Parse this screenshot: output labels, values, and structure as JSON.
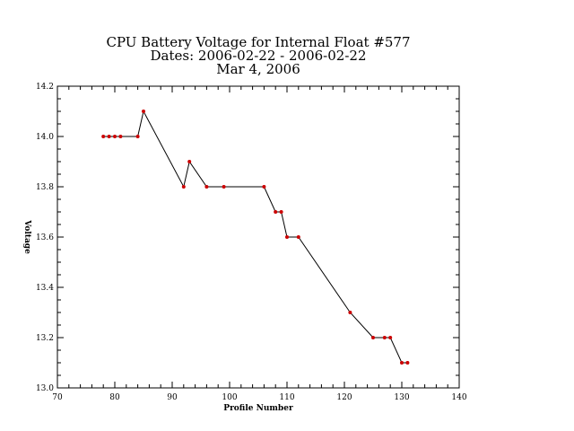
{
  "chart_data": {
    "type": "line",
    "title_lines": [
      "CPU Battery Voltage for Internal Float #577",
      "Dates:  2006-02-22 -  2006-02-22",
      "Mar  4, 2006"
    ],
    "xlabel": "Profile Number",
    "ylabel": "Voltage",
    "xlim": [
      70,
      140
    ],
    "ylim": [
      13.0,
      14.2
    ],
    "xticks": [
      70,
      80,
      90,
      100,
      110,
      120,
      130,
      140
    ],
    "xtick_labels": [
      "70",
      "80",
      "90",
      "100",
      "110",
      "120",
      "130",
      "140"
    ],
    "yticks": [
      13.0,
      13.2,
      13.4,
      13.6,
      13.8,
      14.0,
      14.2
    ],
    "ytick_labels": [
      "13.0",
      "13.2",
      "13.4",
      "13.6",
      "13.8",
      "14.0",
      "14.2"
    ],
    "grid": false,
    "line_color": "#000000",
    "marker_color": "#cc0000",
    "series": [
      {
        "x": [
          78,
          79,
          80,
          81,
          84,
          85,
          92,
          93,
          96,
          99,
          106,
          108,
          109,
          110,
          112,
          121,
          125,
          127,
          128,
          130,
          131
        ],
        "y": [
          14.0,
          14.0,
          14.0,
          14.0,
          14.0,
          14.1,
          13.8,
          13.9,
          13.8,
          13.8,
          13.8,
          13.7,
          13.7,
          13.6,
          13.6,
          13.3,
          13.2,
          13.2,
          13.2,
          13.1,
          13.1
        ]
      }
    ]
  }
}
